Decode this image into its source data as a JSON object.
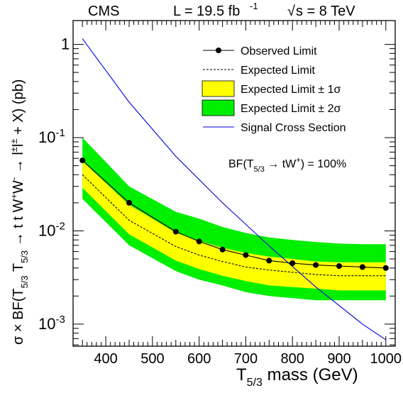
{
  "header": {
    "experiment": "CMS",
    "luminosity": "L = 19.5 fb",
    "luminosity_exp": "-1",
    "energy_sqrt": "√",
    "energy": "s = 8 TeV"
  },
  "annotation": {
    "pre": "BF(T",
    "sub": "5/3",
    "mid": " → tW",
    "sup": "+",
    "post": ") = 100%"
  },
  "axes": {
    "xlabel_main": "T",
    "xlabel_sub": "5/3",
    "xlabel_rest": " mass (GeV)",
    "ylabel_a": "σ × BF(T",
    "ylabel_sub1": "5/3",
    "ylabel_b": " T",
    "ylabel_sub2": "5/3",
    "ylabel_c": " → t t W",
    "ylabel_sup1": "+",
    "ylabel_d": "W",
    "ylabel_sup2": "-",
    "ylabel_e": " → l",
    "ylabel_sup3": "±",
    "ylabel_f": "l",
    "ylabel_sup4": "±",
    "ylabel_g": " + X) (pb)",
    "x_tick_labels": [
      "400",
      "500",
      "600",
      "700",
      "800",
      "900",
      "1000"
    ],
    "y_tick_labels": [
      {
        "base": "1",
        "exp": ""
      },
      {
        "base": "10",
        "exp": "-1"
      },
      {
        "base": "10",
        "exp": "-2"
      },
      {
        "base": "10",
        "exp": "-3"
      }
    ]
  },
  "legend": {
    "items": [
      {
        "label": "Observed Limit",
        "style": "observed"
      },
      {
        "label": "Expected Limit",
        "style": "expected"
      },
      {
        "label": "Expected Limit ± 1σ",
        "style": "band1"
      },
      {
        "label": "Expected Limit ± 2σ",
        "style": "band2"
      },
      {
        "label": "Signal Cross Section",
        "style": "signal"
      }
    ]
  },
  "colors": {
    "band1": "#ffff00",
    "band2": "#00ee00",
    "signal": "#0000dd",
    "observed": "#000000"
  },
  "chart_data": {
    "type": "line",
    "x_scale": "linear",
    "y_scale": "log",
    "xlim": [
      330,
      1020
    ],
    "ylim": [
      0.00058,
      1.8
    ],
    "x_ticks": [
      400,
      500,
      600,
      700,
      800,
      900,
      1000
    ],
    "y_ticks": [
      1,
      0.1,
      0.01,
      0.001
    ],
    "legend_position": "top-right",
    "grid": false,
    "series": [
      {
        "name": "Observed Limit",
        "kind": "line-markers",
        "x": [
          350,
          450,
          550,
          600,
          650,
          700,
          750,
          800,
          850,
          900,
          950,
          1000
        ],
        "y": [
          0.057,
          0.02,
          0.0098,
          0.0077,
          0.0063,
          0.0055,
          0.0048,
          0.0045,
          0.0043,
          0.0042,
          0.0041,
          0.004
        ]
      },
      {
        "name": "Expected Limit",
        "kind": "dashed-line",
        "x": [
          350,
          450,
          550,
          600,
          650,
          700,
          750,
          800,
          850,
          900,
          950,
          1000
        ],
        "y": [
          0.04,
          0.013,
          0.0068,
          0.0055,
          0.0047,
          0.0041,
          0.0038,
          0.0036,
          0.0034,
          0.0033,
          0.0033,
          0.0033
        ]
      },
      {
        "name": "Expected Limit ± 1σ",
        "kind": "band",
        "x": [
          350,
          450,
          550,
          600,
          650,
          700,
          750,
          800,
          850,
          900,
          950,
          1000
        ],
        "low": [
          0.029,
          0.0092,
          0.0048,
          0.0039,
          0.0033,
          0.0029,
          0.0026,
          0.0025,
          0.0024,
          0.0023,
          0.0023,
          0.0023
        ],
        "high": [
          0.056,
          0.019,
          0.0096,
          0.0078,
          0.0066,
          0.0058,
          0.0053,
          0.005,
          0.0047,
          0.0046,
          0.0046,
          0.0046
        ]
      },
      {
        "name": "Expected Limit ± 2σ",
        "kind": "band",
        "x": [
          350,
          450,
          550,
          600,
          650,
          700,
          750,
          800,
          850,
          900,
          950,
          1000
        ],
        "low": [
          0.022,
          0.007,
          0.0037,
          0.003,
          0.0026,
          0.0022,
          0.002,
          0.0019,
          0.0018,
          0.0018,
          0.0018,
          0.0018
        ],
        "high": [
          0.1,
          0.03,
          0.016,
          0.0135,
          0.011,
          0.0095,
          0.0085,
          0.008,
          0.0076,
          0.0073,
          0.0072,
          0.0072
        ]
      },
      {
        "name": "Signal Cross Section",
        "kind": "line",
        "x": [
          350,
          450,
          550,
          650,
          750,
          850,
          950,
          1000
        ],
        "y": [
          1.15,
          0.24,
          0.063,
          0.02,
          0.0069,
          0.0025,
          0.001,
          0.00068
        ]
      }
    ]
  }
}
